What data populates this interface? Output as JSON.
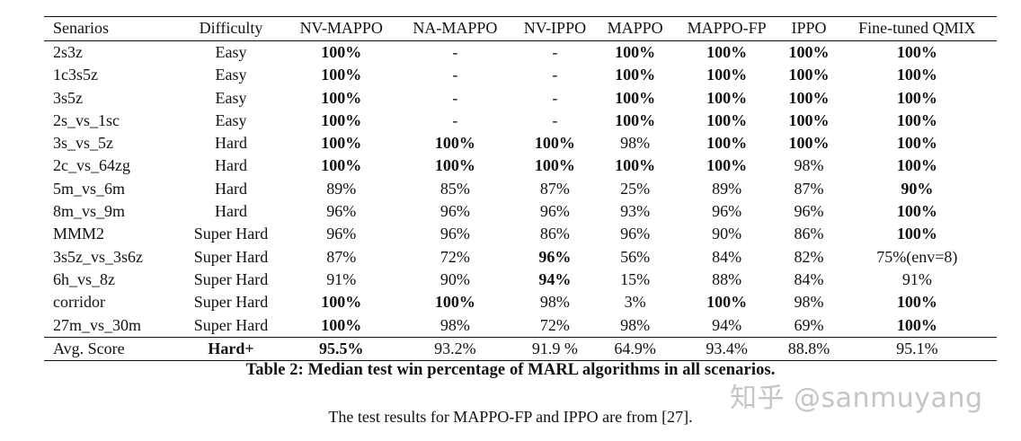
{
  "table": {
    "columns": [
      "Senarios",
      "Difficulty",
      "NV-MAPPO",
      "NA-MAPPO",
      "NV-IPPO",
      "MAPPO",
      "MAPPO-FP",
      "IPPO",
      "Fine-tuned QMIX"
    ],
    "rows": [
      {
        "cells": [
          "2s3z",
          "Easy",
          "100%",
          "-",
          "-",
          "100%",
          "100%",
          "100%",
          "100%"
        ],
        "bold": [
          false,
          false,
          true,
          false,
          false,
          true,
          true,
          true,
          true
        ]
      },
      {
        "cells": [
          "1c3s5z",
          "Easy",
          "100%",
          "-",
          "-",
          "100%",
          "100%",
          "100%",
          "100%"
        ],
        "bold": [
          false,
          false,
          true,
          false,
          false,
          true,
          true,
          true,
          true
        ]
      },
      {
        "cells": [
          "3s5z",
          "Easy",
          "100%",
          "-",
          "-",
          "100%",
          "100%",
          "100%",
          "100%"
        ],
        "bold": [
          false,
          false,
          true,
          false,
          false,
          true,
          true,
          true,
          true
        ]
      },
      {
        "cells": [
          "2s_vs_1sc",
          "Easy",
          "100%",
          "-",
          "-",
          "100%",
          "100%",
          "100%",
          "100%"
        ],
        "bold": [
          false,
          false,
          true,
          false,
          false,
          true,
          true,
          true,
          true
        ]
      },
      {
        "cells": [
          "3s_vs_5z",
          "Hard",
          "100%",
          "100%",
          "100%",
          "98%",
          "100%",
          "100%",
          "100%"
        ],
        "bold": [
          false,
          false,
          true,
          true,
          true,
          false,
          true,
          true,
          true
        ]
      },
      {
        "cells": [
          "2c_vs_64zg",
          "Hard",
          "100%",
          "100%",
          "100%",
          "100%",
          "100%",
          "98%",
          "100%"
        ],
        "bold": [
          false,
          false,
          true,
          true,
          true,
          true,
          true,
          false,
          true
        ]
      },
      {
        "cells": [
          "5m_vs_6m",
          "Hard",
          "89%",
          "85%",
          "87%",
          "25%",
          "89%",
          "87%",
          "90%"
        ],
        "bold": [
          false,
          false,
          false,
          false,
          false,
          false,
          false,
          false,
          true
        ]
      },
      {
        "cells": [
          "8m_vs_9m",
          "Hard",
          "96%",
          "96%",
          "96%",
          "93%",
          "96%",
          "96%",
          "100%"
        ],
        "bold": [
          false,
          false,
          false,
          false,
          false,
          false,
          false,
          false,
          true
        ]
      },
      {
        "cells": [
          "MMM2",
          "Super Hard",
          "96%",
          "96%",
          "86%",
          "96%",
          "90%",
          "86%",
          "100%"
        ],
        "bold": [
          false,
          false,
          false,
          false,
          false,
          false,
          false,
          false,
          true
        ]
      },
      {
        "cells": [
          "3s5z_vs_3s6z",
          "Super Hard",
          "87%",
          "72%",
          "96%",
          "56%",
          "84%",
          "82%",
          "75%(env=8)"
        ],
        "bold": [
          false,
          false,
          false,
          false,
          true,
          false,
          false,
          false,
          false
        ]
      },
      {
        "cells": [
          "6h_vs_8z",
          "Super Hard",
          "91%",
          "90%",
          "94%",
          "15%",
          "88%",
          "84%",
          "91%"
        ],
        "bold": [
          false,
          false,
          false,
          false,
          true,
          false,
          false,
          false,
          false
        ]
      },
      {
        "cells": [
          "corridor",
          "Super Hard",
          "100%",
          "100%",
          "98%",
          "3%",
          "100%",
          "98%",
          "100%"
        ],
        "bold": [
          false,
          false,
          true,
          true,
          false,
          false,
          true,
          false,
          true
        ]
      },
      {
        "cells": [
          "27m_vs_30m",
          "Super Hard",
          "100%",
          "98%",
          "72%",
          "98%",
          "94%",
          "69%",
          "100%"
        ],
        "bold": [
          false,
          false,
          true,
          false,
          false,
          false,
          false,
          false,
          true
        ]
      }
    ],
    "summary": {
      "cells": [
        "Avg. Score",
        "Hard+",
        "95.5%",
        "93.2%",
        "91.9 %",
        "64.9%",
        "93.4%",
        "88.8%",
        "95.1%"
      ],
      "bold": [
        false,
        true,
        true,
        false,
        false,
        false,
        false,
        false,
        false
      ]
    }
  },
  "caption": "Table 2: Median test win percentage of MARL algorithms in all scenarios.",
  "note": "The test results for MAPPO-FP and IPPO are from [27].",
  "watermark": "知乎 @sanmuyang"
}
